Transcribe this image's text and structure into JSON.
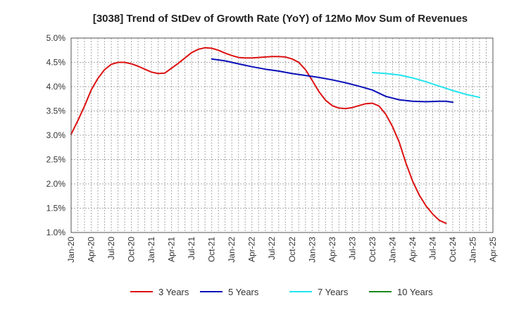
{
  "chart_data": {
    "type": "line",
    "title": "[3038]  Trend of StDev of Growth Rate (YoY) of 12Mo Mov Sum of Revenues",
    "xlabel": "",
    "ylabel": "",
    "x_ticks": [
      "Jan-20",
      "Apr-20",
      "Jul-20",
      "Oct-20",
      "Jan-21",
      "Apr-21",
      "Jul-21",
      "Oct-21",
      "Jan-22",
      "Apr-22",
      "Jul-22",
      "Oct-22",
      "Jan-23",
      "Apr-23",
      "Jul-23",
      "Oct-23",
      "Jan-24",
      "Apr-24",
      "Jul-24",
      "Oct-24",
      "Jan-25",
      "Apr-25"
    ],
    "y_ticks": [
      "1.0%",
      "1.5%",
      "2.0%",
      "2.5%",
      "3.0%",
      "3.5%",
      "4.0%",
      "4.5%",
      "5.0%"
    ],
    "ylim": [
      1.0,
      5.0
    ],
    "x_range_months": [
      0,
      63
    ],
    "grid": true,
    "legend_position": "bottom",
    "series": [
      {
        "name": "3 Years",
        "color": "#dd1111",
        "points": [
          [
            0,
            3.02
          ],
          [
            1,
            3.3
          ],
          [
            2,
            3.6
          ],
          [
            3,
            3.93
          ],
          [
            4,
            4.17
          ],
          [
            5,
            4.35
          ],
          [
            6,
            4.46
          ],
          [
            7,
            4.5
          ],
          [
            8,
            4.5
          ],
          [
            9,
            4.47
          ],
          [
            10,
            4.42
          ],
          [
            11,
            4.36
          ],
          [
            12,
            4.3
          ],
          [
            13,
            4.27
          ],
          [
            14,
            4.28
          ],
          [
            15,
            4.38
          ],
          [
            16,
            4.48
          ],
          [
            17,
            4.59
          ],
          [
            18,
            4.7
          ],
          [
            19,
            4.77
          ],
          [
            20,
            4.8
          ],
          [
            21,
            4.79
          ],
          [
            22,
            4.75
          ],
          [
            23,
            4.69
          ],
          [
            24,
            4.64
          ],
          [
            25,
            4.6
          ],
          [
            26,
            4.59
          ],
          [
            27,
            4.59
          ],
          [
            28,
            4.6
          ],
          [
            29,
            4.61
          ],
          [
            30,
            4.62
          ],
          [
            31,
            4.62
          ],
          [
            32,
            4.61
          ],
          [
            33,
            4.57
          ],
          [
            34,
            4.5
          ],
          [
            35,
            4.35
          ],
          [
            36,
            4.13
          ],
          [
            37,
            3.9
          ],
          [
            38,
            3.72
          ],
          [
            39,
            3.61
          ],
          [
            40,
            3.56
          ],
          [
            41,
            3.55
          ],
          [
            42,
            3.57
          ],
          [
            43,
            3.61
          ],
          [
            44,
            3.65
          ],
          [
            45,
            3.66
          ],
          [
            46,
            3.6
          ],
          [
            47,
            3.43
          ],
          [
            48,
            3.18
          ],
          [
            49,
            2.86
          ],
          [
            50,
            2.43
          ],
          [
            51,
            2.06
          ],
          [
            52,
            1.77
          ],
          [
            53,
            1.55
          ],
          [
            54,
            1.38
          ],
          [
            55,
            1.25
          ],
          [
            56,
            1.19
          ]
        ]
      },
      {
        "name": "5 Years",
        "color": "#0a10b8",
        "points": [
          [
            21,
            4.57
          ],
          [
            23,
            4.53
          ],
          [
            25,
            4.47
          ],
          [
            27,
            4.41
          ],
          [
            29,
            4.36
          ],
          [
            31,
            4.32
          ],
          [
            33,
            4.27
          ],
          [
            35,
            4.23
          ],
          [
            37,
            4.19
          ],
          [
            39,
            4.14
          ],
          [
            41,
            4.08
          ],
          [
            43,
            4.01
          ],
          [
            45,
            3.93
          ],
          [
            47,
            3.8
          ],
          [
            49,
            3.73
          ],
          [
            51,
            3.7
          ],
          [
            53,
            3.69
          ],
          [
            55,
            3.7
          ],
          [
            56,
            3.7
          ],
          [
            57,
            3.68
          ]
        ]
      },
      {
        "name": "7 Years",
        "color": "#22e5ef",
        "points": [
          [
            45,
            4.29
          ],
          [
            47,
            4.27
          ],
          [
            49,
            4.24
          ],
          [
            51,
            4.18
          ],
          [
            53,
            4.1
          ],
          [
            55,
            4.01
          ],
          [
            57,
            3.92
          ],
          [
            59,
            3.84
          ],
          [
            61,
            3.78
          ]
        ]
      },
      {
        "name": "10 Years",
        "color": "#1a8a1a",
        "points": []
      }
    ]
  }
}
